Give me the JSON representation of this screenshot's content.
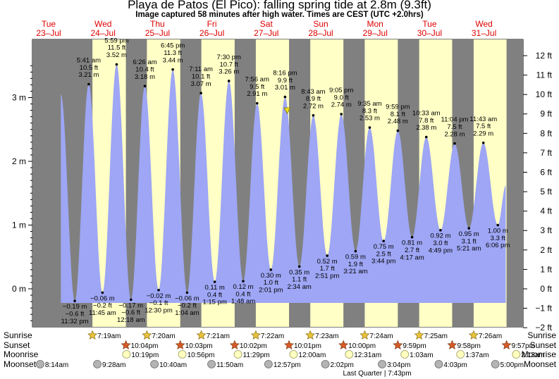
{
  "header": {
    "title": "Playa de Patos (El Pico): falling  spring tide at 2.8m (9.3ft)",
    "subtitle": "Image captured 58 minutes after high water. Times are CEST (UTC +2.0hrs)"
  },
  "chart_data": {
    "type": "area",
    "unit_left": "m",
    "unit_right": "ft",
    "y_m_range": [
      -0.6,
      3.6
    ],
    "y_ticks_m": [
      "3 m",
      "2 m",
      "1 m",
      "0 m"
    ],
    "y_ticks_ft": [
      "12 ft",
      "11 ft",
      "10 ft",
      "9 ft",
      "8 ft",
      "7 ft",
      "6 ft",
      "5 ft",
      "4 ft",
      "3 ft",
      "2 ft",
      "1 ft",
      "0 ft",
      "−1 ft",
      "−2 ft"
    ],
    "days": [
      {
        "dow": "Tue",
        "date": "23–Jul"
      },
      {
        "dow": "Wed",
        "date": "24–Jul"
      },
      {
        "dow": "Thu",
        "date": "25–Jul"
      },
      {
        "dow": "Fri",
        "date": "26–Jul"
      },
      {
        "dow": "Sat",
        "date": "27–Jul"
      },
      {
        "dow": "Sun",
        "date": "28–Jul"
      },
      {
        "dow": "Mon",
        "date": "29–Jul"
      },
      {
        "dow": "Tue",
        "date": "30–Jul"
      },
      {
        "dow": "Wed",
        "date": "31–Jul"
      }
    ],
    "tides": [
      {
        "type": "low",
        "day": 0,
        "time": "11:32 pm",
        "m": "−0.19 m",
        "ft": "−0.6 ft",
        "h": -0.19
      },
      {
        "type": "high",
        "day": 1,
        "time": "5:41 am",
        "m": "3.21 m",
        "ft": "10.5 ft",
        "h": 3.21
      },
      {
        "type": "low",
        "day": 1,
        "time": "11:45 am",
        "m": "−0.06 m",
        "ft": "−0.2 ft",
        "h": -0.06
      },
      {
        "type": "high",
        "day": 1,
        "time": "5:59 pm",
        "m": "3.52 m",
        "ft": "11.5 ft",
        "h": 3.52
      },
      {
        "type": "low",
        "day": 2,
        "time": "12:18 am",
        "m": "−0.17 m",
        "ft": "−0.6 ft",
        "h": -0.17
      },
      {
        "type": "high",
        "day": 2,
        "time": "6:26 am",
        "m": "3.18 m",
        "ft": "10.4 ft",
        "h": 3.18
      },
      {
        "type": "low",
        "day": 2,
        "time": "12:30 pm",
        "m": "−0.02 m",
        "ft": "−0.1 ft",
        "h": -0.02
      },
      {
        "type": "high",
        "day": 2,
        "time": "6:45 pm",
        "m": "3.44 m",
        "ft": "11.3 ft",
        "h": 3.44
      },
      {
        "type": "low",
        "day": 3,
        "time": "1:04 am",
        "m": "−0.06 m",
        "ft": "−0.2 ft",
        "h": -0.06
      },
      {
        "type": "high",
        "day": 3,
        "time": "7:11 am",
        "m": "3.07 m",
        "ft": "10.1 ft",
        "h": 3.07
      },
      {
        "type": "low",
        "day": 3,
        "time": "1:15 pm",
        "m": "0.11 m",
        "ft": "0.4 ft",
        "h": 0.11
      },
      {
        "type": "high",
        "day": 3,
        "time": "7:30 pm",
        "m": "3.26 m",
        "ft": "10.7 ft",
        "h": 3.26
      },
      {
        "type": "low",
        "day": 4,
        "time": "1:48 am",
        "m": "0.12 m",
        "ft": "0.4 ft",
        "h": 0.12
      },
      {
        "type": "high",
        "day": 4,
        "time": "7:56 am",
        "m": "2.91 m",
        "ft": "9.5 ft",
        "h": 2.91
      },
      {
        "type": "low",
        "day": 4,
        "time": "2:01 pm",
        "m": "0.30 m",
        "ft": "1.0 ft",
        "h": 0.3
      },
      {
        "type": "high",
        "day": 4,
        "time": "8:16 pm",
        "m": "3.01 m",
        "ft": "9.9 ft",
        "h": 3.01
      },
      {
        "type": "low",
        "day": 5,
        "time": "2:34 am",
        "m": "0.35 m",
        "ft": "1.1 ft",
        "h": 0.35
      },
      {
        "type": "high",
        "day": 5,
        "time": "8:43 am",
        "m": "2.72 m",
        "ft": "8.9 ft",
        "h": 2.72
      },
      {
        "type": "low",
        "day": 5,
        "time": "2:51 pm",
        "m": "0.52 m",
        "ft": "1.7 ft",
        "h": 0.52
      },
      {
        "type": "high",
        "day": 5,
        "time": "9:05 pm",
        "m": "2.74 m",
        "ft": "9.0 ft",
        "h": 2.74
      },
      {
        "type": "low",
        "day": 6,
        "time": "3:21 am",
        "m": "0.59 m",
        "ft": "1.9 ft",
        "h": 0.59
      },
      {
        "type": "high",
        "day": 6,
        "time": "9:35 am",
        "m": "2.53 m",
        "ft": "8.3 ft",
        "h": 2.53
      },
      {
        "type": "low",
        "day": 6,
        "time": "3:44 pm",
        "m": "0.75 m",
        "ft": "2.5 ft",
        "h": 0.75
      },
      {
        "type": "high",
        "day": 6,
        "time": "9:59 pm",
        "m": "2.48 m",
        "ft": "8.1 ft",
        "h": 2.48
      },
      {
        "type": "low",
        "day": 7,
        "time": "4:17 am",
        "m": "0.81 m",
        "ft": "2.7 ft",
        "h": 0.81
      },
      {
        "type": "high",
        "day": 7,
        "time": "10:33 am",
        "m": "2.38 m",
        "ft": "7.8 ft",
        "h": 2.38
      },
      {
        "type": "low",
        "day": 7,
        "time": "4:49 pm",
        "m": "0.92 m",
        "ft": "3.0 ft",
        "h": 0.92
      },
      {
        "type": "high",
        "day": 7,
        "time": "11:04 pm",
        "m": "2.28 m",
        "ft": "7.5 ft",
        "h": 2.28
      },
      {
        "type": "low",
        "day": 8,
        "time": "5:21 am",
        "m": "0.95 m",
        "ft": "3.1 ft",
        "h": 0.95
      },
      {
        "type": "high",
        "day": 8,
        "time": "11:43 am",
        "m": "2.29 m",
        "ft": "7.5 ft",
        "h": 2.29
      },
      {
        "type": "low",
        "day": 8,
        "time": "6:06 pm",
        "m": "1.00 m",
        "ft": "3.3 ft",
        "h": 1.0
      }
    ],
    "now_marker_time": "9:14 pm Sat 27–Jul",
    "row_labels": [
      "Sunrise",
      "Sunset",
      "Moonrise",
      "Moonset"
    ],
    "sunrise": [
      "7:19am",
      "7:20am",
      "7:21am",
      "7:22am",
      "7:23am",
      "7:24am",
      "7:25am",
      "7:26am"
    ],
    "sunset": [
      "10:04pm",
      "10:03pm",
      "10:02pm",
      "10:01pm",
      "10:00pm",
      "9:59pm",
      "9:58pm",
      "9:57pm"
    ],
    "moonrise": [
      "10:19pm",
      "10:56pm",
      "11:29pm",
      "12:00am",
      "12:31am",
      "1:03am",
      "1:37am",
      "2:13am"
    ],
    "moonset": [
      "8:14am",
      "9:28am",
      "10:40am",
      "11:50am",
      "12:57pm",
      "2:02pm",
      "3:04pm",
      "4:03pm",
      "5:00pm"
    ],
    "moon_phase_note": "Last Quarter | 7:43pm",
    "colors": {
      "day": "#ffffc6",
      "night": "#808080",
      "water": "#9ea6f5",
      "day_label": "#e00000",
      "sun": "#e8c23a",
      "sunset": "#d85a28",
      "moon": "#ffffc0",
      "moonset": "#b4b4b4"
    }
  }
}
